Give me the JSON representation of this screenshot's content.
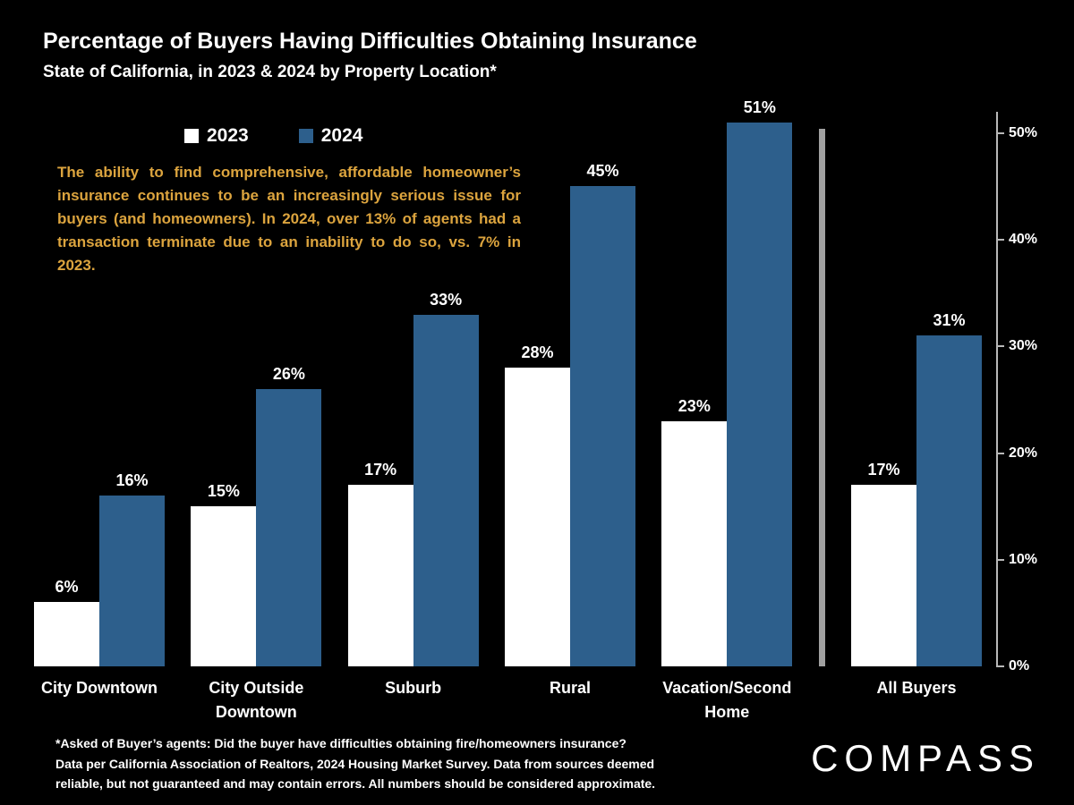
{
  "title": "Percentage of Buyers Having Difficulties Obtaining Insurance",
  "subtitle": "State of California, in 2023 & 2024 by Property Location*",
  "legend": [
    {
      "label": "2023",
      "color": "#ffffff"
    },
    {
      "label": "2024",
      "color": "#2d5f8c"
    }
  ],
  "annotation": "The ability to find comprehensive, affordable homeowner’s insurance continues to be an increasingly serious issue for buyers (and homeowners). In 2024, over 13% of agents had a transaction terminate due to an inability to do so, vs. 7% in 2023.",
  "chart_data": {
    "type": "bar",
    "title": "Percentage of Buyers Having Difficulties Obtaining Insurance",
    "subtitle": "State of California, in 2023 & 2024 by Property Location*",
    "categories": [
      "City Downtown",
      "City Outside Downtown",
      "Suburb",
      "Rural",
      "Vacation/Second Home",
      "All Buyers"
    ],
    "series": [
      {
        "name": "2023",
        "color": "#ffffff",
        "values": [
          6,
          15,
          17,
          28,
          23,
          17
        ]
      },
      {
        "name": "2024",
        "color": "#2d5f8c",
        "values": [
          16,
          26,
          33,
          45,
          51,
          31
        ]
      }
    ],
    "value_suffix": "%",
    "y_ticks": [
      {
        "label": "0%",
        "value": 0
      },
      {
        "label": "10%",
        "value": 10
      },
      {
        "label": "20%",
        "value": 20
      },
      {
        "label": "30%",
        "value": 30
      },
      {
        "label": "40%",
        "value": 40
      },
      {
        "label": "50%",
        "value": 50
      }
    ],
    "ylim": [
      0,
      52
    ],
    "grid": false,
    "legend_position": "top-left",
    "axis_side": "right",
    "separator_after_index": 4
  },
  "footnote_lines": [
    "*Asked of Buyer’s agents:  Did the buyer have difficulties obtaining fire/homeowners insurance?",
    "Data per California Association of Realtors, 2024 Housing Market Survey. Data from sources deemed",
    "reliable, but not guaranteed and may contain errors. All numbers should be considered approximate.",
    ""
  ],
  "logo_text": "COMPASS",
  "colors": {
    "background": "#000000",
    "text": "#ffffff",
    "annotation": "#dca43e",
    "separator": "#a0a0a0",
    "bar_2023": "#ffffff",
    "bar_2024": "#2d5f8c"
  }
}
